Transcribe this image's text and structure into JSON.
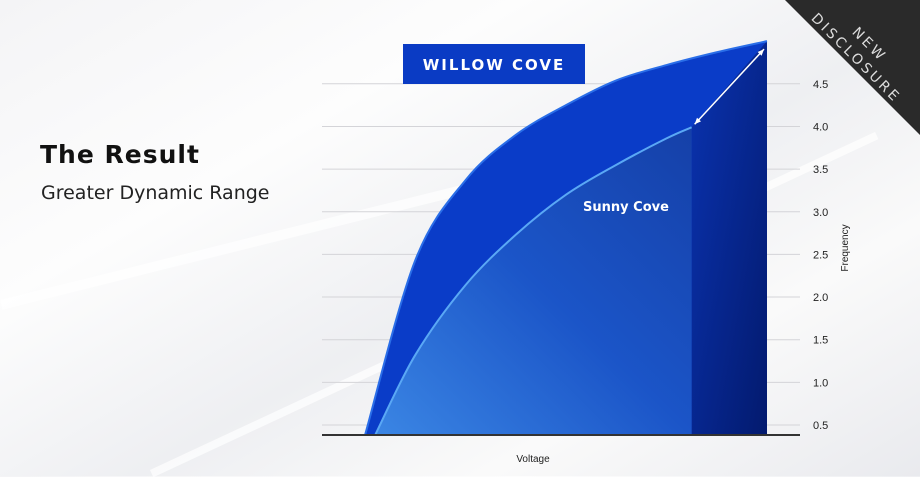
{
  "slide": {
    "title": "The Result",
    "subtitle": "Greater Dynamic Range",
    "badge": "NEW DISCLOSURE",
    "badge_line1": "NEW",
    "badge_line2": "DISCLOSURE"
  },
  "chart_data": {
    "type": "area",
    "xlabel": "Voltage",
    "ylabel": "Frequency",
    "ylim": [
      0.38,
      5.0
    ],
    "yticks": [
      "0.5",
      "1.0",
      "1.5",
      "2.0",
      "2.5",
      "3.0",
      "3.5",
      "4.0",
      "4.5"
    ],
    "ytick_values": [
      0.5,
      1.0,
      1.5,
      2.0,
      2.5,
      3.0,
      3.5,
      4.0,
      4.5
    ],
    "grid": true,
    "series": [
      {
        "name": "WILLOW COVE",
        "color": "#0a3cc8",
        "x": [
          0,
          1,
          2,
          3,
          4,
          5,
          6,
          7,
          8
        ],
        "values": [
          0.38,
          2.43,
          3.37,
          3.9,
          4.25,
          4.54,
          4.72,
          4.87,
          5.0
        ]
      },
      {
        "name": "Sunny Cove",
        "color": "#3a8ee8",
        "x": [
          0.2,
          1,
          2,
          3,
          4,
          5,
          6,
          6.5
        ],
        "values": [
          0.38,
          1.32,
          2.14,
          2.73,
          3.2,
          3.55,
          3.86,
          3.99
        ]
      }
    ],
    "annotation": "double-headed arrow between Sunny Cove max and Willow Cove max"
  }
}
